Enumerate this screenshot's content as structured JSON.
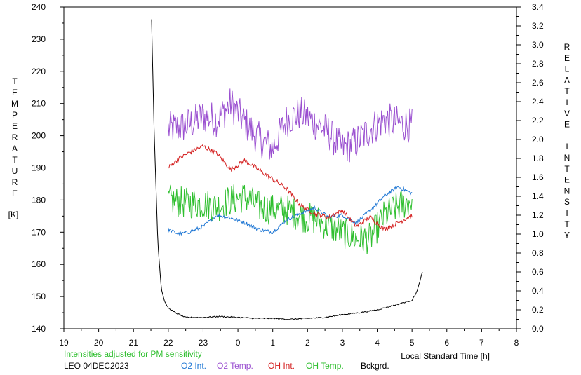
{
  "chart_data": {
    "type": "line",
    "xlabel": "Local Standard Time [h]",
    "ylabel_left_letters": [
      "T",
      "E",
      "M",
      "P",
      "E",
      "R",
      "A",
      "T",
      "U",
      "R",
      "E"
    ],
    "ylabel_left_unit": "[K]",
    "ylabel_right_letters": [
      "R",
      "E",
      "L",
      "A",
      "T",
      "I",
      "V",
      "E",
      "",
      "I",
      "N",
      "T",
      "E",
      "N",
      "S",
      "I",
      "T",
      "Y"
    ],
    "note": "Intensities adjusted for PM sensitivity",
    "station": "LEO 04DEC2023",
    "x_ticks": [
      "19",
      "20",
      "21",
      "22",
      "23",
      "0",
      "1",
      "2",
      "3",
      "4",
      "5",
      "6",
      "7",
      "8"
    ],
    "x_range_hours": [
      19,
      32
    ],
    "ylim_left": [
      140,
      240
    ],
    "y_ticks_left": [
      "140",
      "150",
      "160",
      "170",
      "180",
      "190",
      "200",
      "210",
      "220",
      "230",
      "240"
    ],
    "ylim_right": [
      0.0,
      3.4
    ],
    "y_ticks_right": [
      "0.0",
      "0.2",
      "0.4",
      "0.6",
      "0.8",
      "1.0",
      "1.2",
      "1.4",
      "1.6",
      "1.8",
      "2.0",
      "2.2",
      "2.4",
      "2.6",
      "2.8",
      "3.0",
      "3.2",
      "3.4"
    ],
    "grid": false,
    "legend": [
      {
        "label": "O2 Int.",
        "color": "#1f77d4"
      },
      {
        "label": "O2 Temp.",
        "color": "#9a4fd0"
      },
      {
        "label": "OH Int.",
        "color": "#d42020"
      },
      {
        "label": "OH Temp.",
        "color": "#2fbf2f"
      },
      {
        "label": "Bckgrd.",
        "color": "#000000"
      }
    ],
    "series": [
      {
        "key": "o2temp",
        "axis": "left",
        "color": "#9a4fd0",
        "noise": 5.5,
        "x": [
          22.0,
          22.5,
          23.0,
          23.4,
          23.8,
          24.2,
          24.6,
          25.0,
          25.4,
          25.8,
          26.2,
          26.6,
          27.0,
          27.4,
          27.8,
          28.2,
          28.6,
          29.0
        ],
        "y": [
          202,
          203,
          206,
          205,
          210,
          204,
          199,
          196,
          205,
          207,
          204,
          201,
          196,
          198,
          202,
          205,
          204,
          203
        ]
      },
      {
        "key": "ohtemp",
        "axis": "left",
        "color": "#2fbf2f",
        "noise": 5,
        "x": [
          22.0,
          22.5,
          23.0,
          23.4,
          23.8,
          24.2,
          24.6,
          25.0,
          25.4,
          25.8,
          26.2,
          26.6,
          27.0,
          27.4,
          27.8,
          28.2,
          28.6,
          29.0
        ],
        "y": [
          180,
          179,
          179,
          178,
          180,
          181,
          178,
          177,
          177,
          175,
          174,
          172,
          170,
          168,
          168,
          175,
          178,
          180
        ]
      },
      {
        "key": "o2int",
        "axis": "right",
        "color": "#1f77d4",
        "noise": 0.02,
        "x": [
          22.0,
          22.3,
          22.6,
          23.0,
          23.4,
          23.8,
          24.2,
          24.6,
          25.0,
          25.4,
          25.8,
          26.2,
          26.6,
          27.0,
          27.4,
          27.8,
          28.2,
          28.6,
          29.0
        ],
        "y": [
          1.05,
          1.0,
          1.02,
          1.08,
          1.2,
          1.17,
          1.12,
          1.05,
          1.02,
          1.15,
          1.22,
          1.28,
          1.18,
          1.2,
          1.12,
          1.25,
          1.4,
          1.5,
          1.43
        ]
      },
      {
        "key": "ohint",
        "axis": "right",
        "color": "#d42020",
        "noise": 0.025,
        "x": [
          22.0,
          22.3,
          22.7,
          23.0,
          23.4,
          23.8,
          24.2,
          24.6,
          25.0,
          25.4,
          25.8,
          26.2,
          26.6,
          27.0,
          27.4,
          27.8,
          28.2,
          28.6,
          29.0
        ],
        "y": [
          1.7,
          1.8,
          1.88,
          1.93,
          1.85,
          1.68,
          1.78,
          1.68,
          1.58,
          1.48,
          1.3,
          1.22,
          1.18,
          1.25,
          1.08,
          1.18,
          1.05,
          1.12,
          1.2
        ]
      },
      {
        "key": "bckgrd",
        "axis": "right",
        "color": "#000000",
        "noise": 0.006,
        "x": [
          21.52,
          21.6,
          21.7,
          21.8,
          21.9,
          22.0,
          22.2,
          22.5,
          23.0,
          23.5,
          24.0,
          24.5,
          25.0,
          25.5,
          26.0,
          26.5,
          27.0,
          27.5,
          28.0,
          28.5,
          28.8,
          29.0,
          29.15,
          29.3
        ],
        "y": [
          3.27,
          2.0,
          0.9,
          0.42,
          0.28,
          0.22,
          0.17,
          0.12,
          0.12,
          0.13,
          0.12,
          0.11,
          0.11,
          0.1,
          0.11,
          0.12,
          0.15,
          0.17,
          0.2,
          0.25,
          0.28,
          0.3,
          0.4,
          0.6
        ]
      }
    ]
  }
}
